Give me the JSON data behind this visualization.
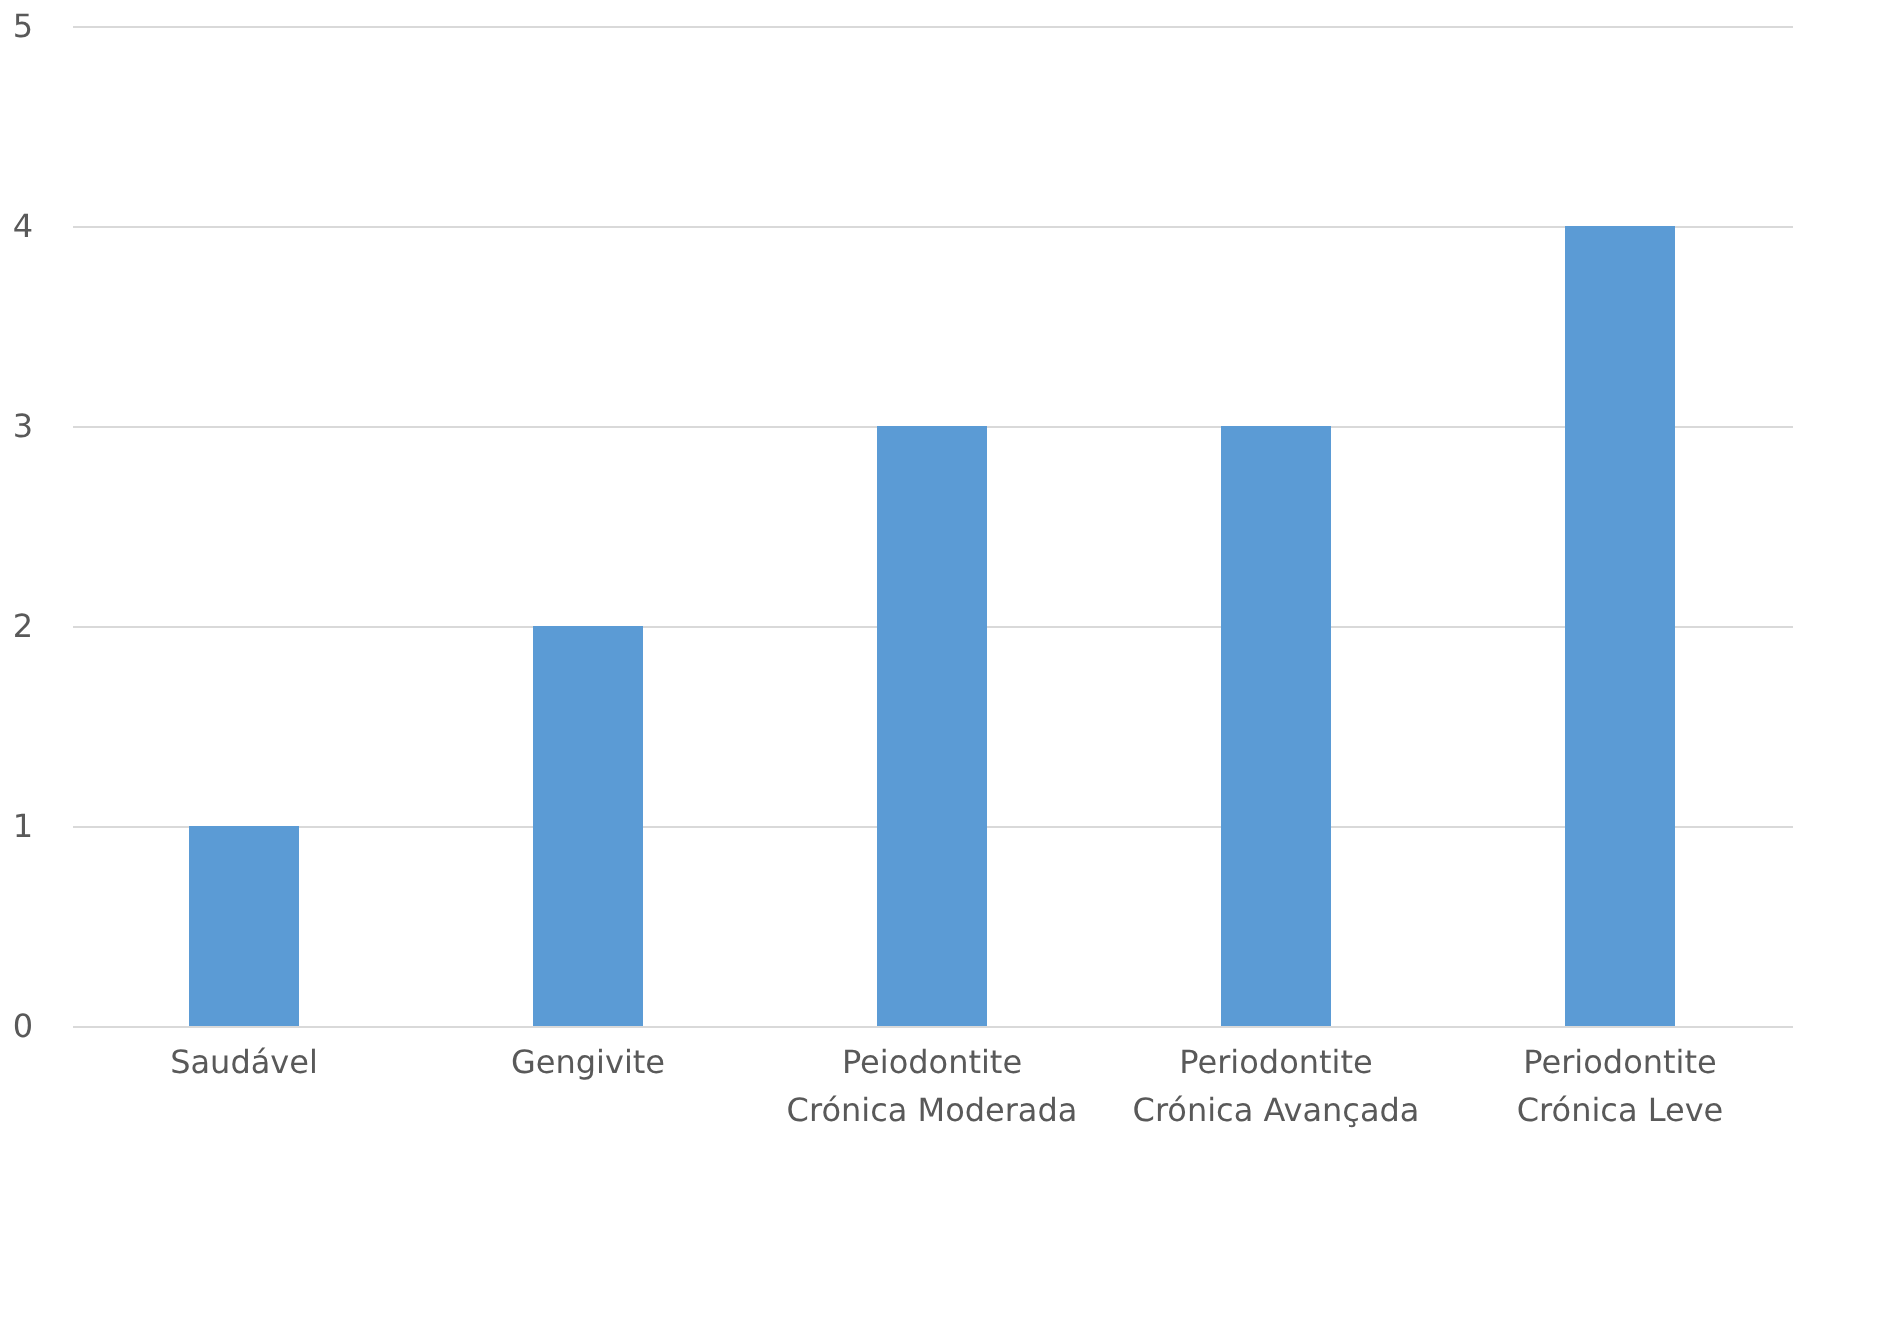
{
  "chart_data": {
    "type": "bar",
    "categories": [
      "Saudável",
      "Gengivite",
      "Peiodontite Crónica Moderada",
      "Periodontite Crónica Avançada",
      "Periodontite Crónica Leve"
    ],
    "values": [
      1,
      2,
      3,
      3,
      4
    ],
    "color": "#5b9bd5",
    "ylim": [
      0,
      5
    ],
    "yticks": [
      0,
      1,
      2,
      3,
      4,
      5
    ],
    "grid": "y"
  }
}
